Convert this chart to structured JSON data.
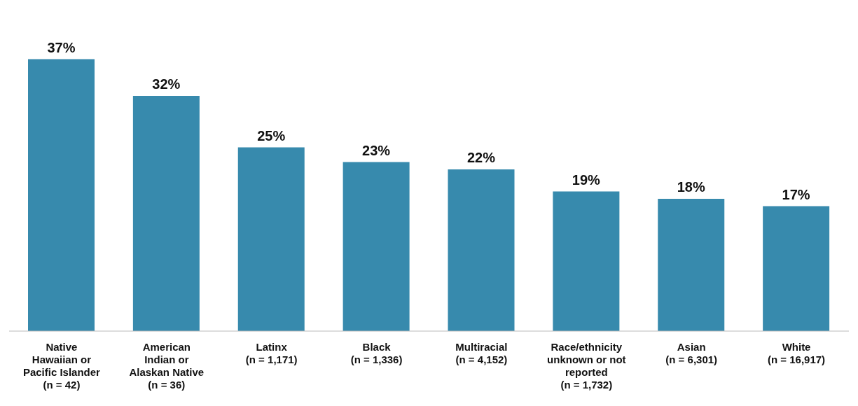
{
  "chart_data": {
    "type": "bar",
    "categories": [
      "Native\nHawaiian or\nPacific Islander\n(n = 42)",
      "American\nIndian or\nAlaskan Native\n(n = 36)",
      "Latinx\n(n = 1,171)",
      "Black\n(n = 1,336)",
      "Multiracial\n(n = 4,152)",
      "Race/ethnicity\nunknown or not\nreported\n(n = 1,732)",
      "Asian\n(n = 6,301)",
      "White\n(n = 16,917)"
    ],
    "values": [
      37,
      32,
      25,
      23,
      22,
      19,
      18,
      17
    ],
    "value_labels": [
      "37%",
      "32%",
      "25%",
      "23%",
      "22%",
      "19%",
      "18%",
      "17%"
    ],
    "color": "#378aad",
    "grid": false,
    "legend": false
  }
}
